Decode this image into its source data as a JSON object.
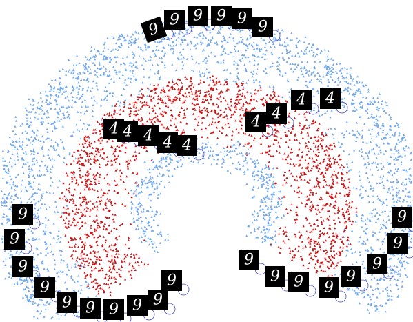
{
  "thumbnails": [
    {
      "label": "9"
    },
    {
      "label": "9"
    },
    {
      "label": "9"
    },
    {
      "label": "9"
    },
    {
      "label": "9"
    },
    {
      "label": "9"
    },
    {
      "label": "4"
    },
    {
      "label": "4"
    },
    {
      "label": "4"
    },
    {
      "label": "4"
    },
    {
      "label": "4"
    },
    {
      "label": "4"
    },
    {
      "label": "4"
    },
    {
      "label": "4"
    },
    {
      "label": "4"
    },
    {
      "label": "9"
    },
    {
      "label": "9"
    },
    {
      "label": "9"
    },
    {
      "label": "9"
    },
    {
      "label": "9"
    },
    {
      "label": "9"
    },
    {
      "label": "9"
    },
    {
      "label": "9"
    },
    {
      "label": "9"
    },
    {
      "label": "9"
    },
    {
      "label": "9"
    },
    {
      "label": "9"
    },
    {
      "label": "9"
    },
    {
      "label": "9"
    },
    {
      "label": "9"
    },
    {
      "label": "9"
    },
    {
      "label": "9"
    },
    {
      "label": "9"
    }
  ]
}
